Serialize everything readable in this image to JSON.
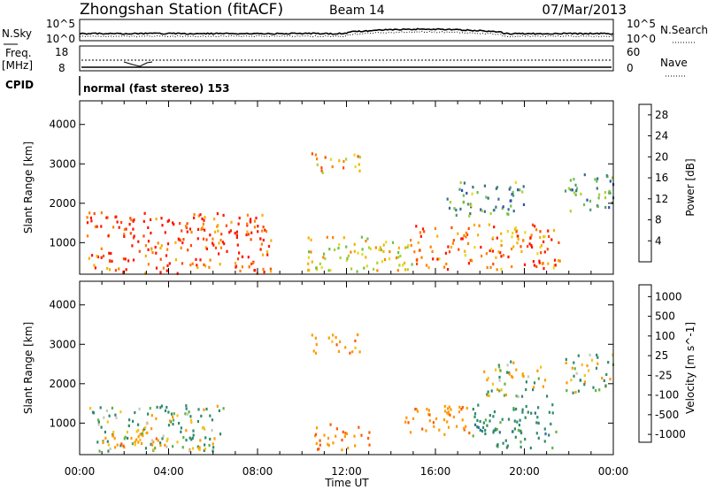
{
  "header": {
    "station": "Zhongshan Station (fitACF)",
    "beam": "Beam 14",
    "date": "07/Mar/2013"
  },
  "noise_panel": {
    "left_label": "N.Sky",
    "right_label": "N.Search",
    "left_ticks": [
      "10^5",
      "10^0"
    ],
    "right_ticks": [
      "10^5",
      "10^0"
    ]
  },
  "freq_panel": {
    "left_label_1": "Freq.",
    "left_label_2": "[MHz]",
    "right_label": "Nave",
    "left_ticks": [
      "18",
      "8"
    ],
    "right_ticks": [
      "60",
      "0"
    ]
  },
  "cpid": {
    "label": "CPID",
    "text": "normal (fast stereo) 153"
  },
  "chart_data": [
    {
      "type": "heatmap",
      "title": "",
      "xlabel": "Time UT",
      "ylabel": "Slant Range [km]",
      "xlim": [
        "00:00",
        "24:00"
      ],
      "ylim": [
        200,
        4600
      ],
      "x_ticks": [
        "00:00",
        "04:00",
        "08:00",
        "12:00",
        "16:00",
        "20:00",
        "00:00"
      ],
      "y_ticks": [
        1000,
        2000,
        3000,
        4000
      ],
      "colorbar": {
        "label": "Power [dB]",
        "ticks": [
          "4",
          "8",
          "12",
          "16",
          "20",
          "24",
          "28"
        ],
        "range": [
          0,
          30
        ],
        "colors": [
          "#1b1bff",
          "#2f4fb4",
          "#3d6e8c",
          "#4e9a6a",
          "#6cc04a",
          "#a8d231",
          "#e8d81c",
          "#f5b100",
          "#ff8000",
          "#ff4a00",
          "#ff1400"
        ]
      },
      "scatter_regions": [
        {
          "t_start": 0.3,
          "t_end": 8.6,
          "r_min": 250,
          "r_max": 1800,
          "value": 27
        },
        {
          "t_start": 10.2,
          "t_end": 15.0,
          "r_min": 300,
          "r_max": 1200,
          "value": 18
        },
        {
          "t_start": 15.0,
          "t_end": 21.6,
          "r_min": 350,
          "r_max": 1500,
          "value": 24
        },
        {
          "t_start": 10.4,
          "t_end": 12.6,
          "r_min": 2800,
          "r_max": 3300,
          "value": 20
        },
        {
          "t_start": 16.5,
          "t_end": 20.0,
          "r_min": 1700,
          "r_max": 2600,
          "value": 10
        },
        {
          "t_start": 21.8,
          "t_end": 24.0,
          "r_min": 1800,
          "r_max": 2800,
          "value": 9
        }
      ]
    },
    {
      "type": "heatmap",
      "title": "",
      "xlabel": "Time UT",
      "ylabel": "Slant Range [km]",
      "xlim": [
        "00:00",
        "24:00"
      ],
      "ylim": [
        200,
        4600
      ],
      "x_ticks": [
        "00:00",
        "04:00",
        "08:00",
        "12:00",
        "16:00",
        "20:00",
        "00:00"
      ],
      "y_ticks": [
        1000,
        2000,
        3000,
        4000
      ],
      "colorbar": {
        "label": "Velocity [m s^-1]",
        "ticks": [
          "1000",
          "500",
          "100",
          "25",
          "-25",
          "-100",
          "-500",
          "-1000"
        ],
        "colors": [
          "#2440c8",
          "#2e6fa0",
          "#2f8a6a",
          "#5fb341",
          "#c8c8c0",
          "#f6c218",
          "#ff9a00",
          "#ff5a00",
          "#ff1a00"
        ]
      },
      "scatter_regions": [
        {
          "t_start": 0.3,
          "t_end": 6.5,
          "r_min": 300,
          "r_max": 1500,
          "value": 100
        },
        {
          "t_start": 1.0,
          "t_end": 4.0,
          "r_min": 400,
          "r_max": 900,
          "value": -300
        },
        {
          "t_start": 10.5,
          "t_end": 13.0,
          "r_min": 350,
          "r_max": 1000,
          "value": -500
        },
        {
          "t_start": 14.5,
          "t_end": 17.5,
          "r_min": 700,
          "r_max": 1500,
          "value": -400
        },
        {
          "t_start": 17.5,
          "t_end": 21.5,
          "r_min": 400,
          "r_max": 1500,
          "value": 300
        },
        {
          "t_start": 10.4,
          "t_end": 12.6,
          "r_min": 2800,
          "r_max": 3300,
          "value": -300
        },
        {
          "t_start": 18.0,
          "t_end": 21.0,
          "r_min": 1700,
          "r_max": 2600,
          "value": 0
        },
        {
          "t_start": 21.8,
          "t_end": 24.0,
          "r_min": 1800,
          "r_max": 2800,
          "value": 0
        }
      ]
    }
  ]
}
